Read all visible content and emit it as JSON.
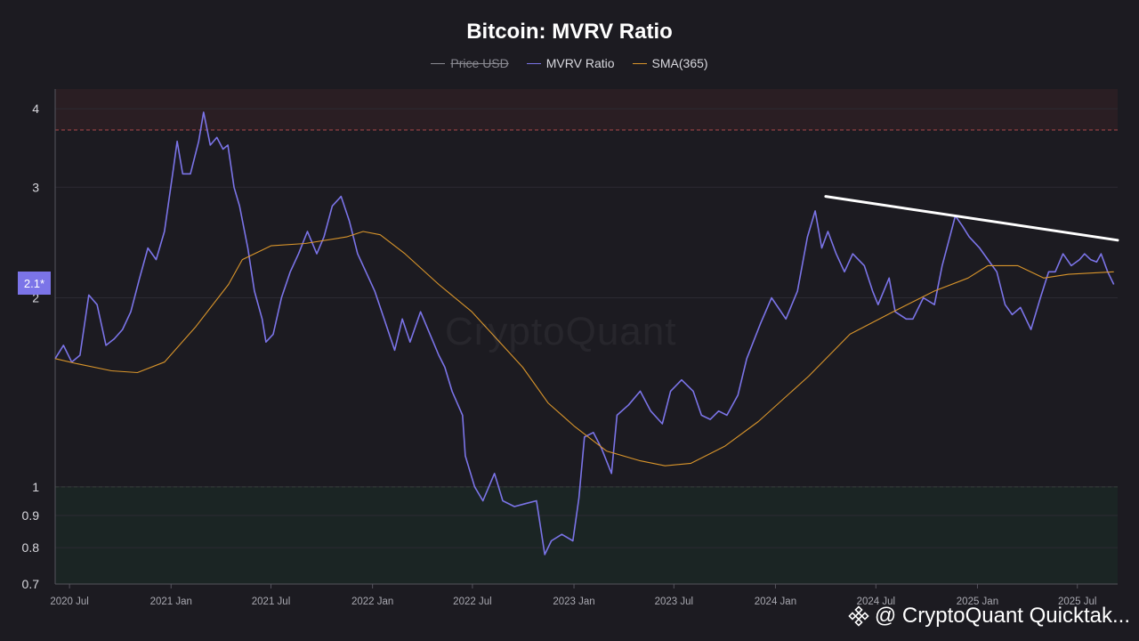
{
  "chart_data": {
    "type": "line",
    "title": "Bitcoin: MVRV Ratio",
    "xlabel": "",
    "ylabel": "",
    "y_scale": "log",
    "ylim": [
      0.7,
      4.3
    ],
    "xlim": [
      "2020-06-05",
      "2025-09-12"
    ],
    "yticks": [
      {
        "label": "4",
        "value": 4
      },
      {
        "label": "3",
        "value": 3
      },
      {
        "label": "2",
        "value": 2
      },
      {
        "label": "1",
        "value": 1
      },
      {
        "label": "0.9",
        "value": 0.9
      },
      {
        "label": "0.8",
        "value": 0.8
      },
      {
        "label": "0.7",
        "value": 0.7
      }
    ],
    "xticks": [
      {
        "label": "2020 Jul",
        "date": "2020-07-01"
      },
      {
        "label": "2021 Jan",
        "date": "2021-01-01"
      },
      {
        "label": "2021 Jul",
        "date": "2021-07-01"
      },
      {
        "label": "2022 Jan",
        "date": "2022-01-01"
      },
      {
        "label": "2022 Jul",
        "date": "2022-07-01"
      },
      {
        "label": "2023 Jan",
        "date": "2023-01-01"
      },
      {
        "label": "2023 Jul",
        "date": "2023-07-01"
      },
      {
        "label": "2024 Jan",
        "date": "2024-01-01"
      },
      {
        "label": "2024 Jul",
        "date": "2024-07-01"
      },
      {
        "label": "2025 Jan",
        "date": "2025-01-01"
      },
      {
        "label": "2025 Jul",
        "date": "2025-07-01"
      }
    ],
    "series": [
      {
        "name": "Price USD",
        "color": "#8a8a92",
        "hidden": true,
        "x": [],
        "y": []
      },
      {
        "name": "MVRV Ratio",
        "color": "#7b74e8",
        "x": [
          "2020-06-05",
          "2020-06-20",
          "2020-07-05",
          "2020-07-20",
          "2020-08-05",
          "2020-08-20",
          "2020-09-05",
          "2020-09-20",
          "2020-10-05",
          "2020-10-20",
          "2020-11-05",
          "2020-11-20",
          "2020-12-05",
          "2020-12-20",
          "2021-01-05",
          "2021-01-12",
          "2021-01-22",
          "2021-02-05",
          "2021-02-20",
          "2021-03-01",
          "2021-03-13",
          "2021-03-25",
          "2021-04-05",
          "2021-04-14",
          "2021-04-25",
          "2021-05-05",
          "2021-05-20",
          "2021-06-01",
          "2021-06-15",
          "2021-06-22",
          "2021-07-05",
          "2021-07-20",
          "2021-08-05",
          "2021-08-20",
          "2021-09-05",
          "2021-09-22",
          "2021-10-05",
          "2021-10-20",
          "2021-11-05",
          "2021-11-20",
          "2021-12-05",
          "2021-12-20",
          "2022-01-05",
          "2022-01-22",
          "2022-02-10",
          "2022-02-24",
          "2022-03-10",
          "2022-03-29",
          "2022-04-15",
          "2022-05-01",
          "2022-05-12",
          "2022-05-25",
          "2022-06-13",
          "2022-06-18",
          "2022-07-05",
          "2022-07-20",
          "2022-08-10",
          "2022-08-25",
          "2022-09-15",
          "2022-10-05",
          "2022-10-25",
          "2022-11-09",
          "2022-11-21",
          "2022-12-10",
          "2022-12-30",
          "2023-01-10",
          "2023-01-20",
          "2023-02-05",
          "2023-02-20",
          "2023-03-10",
          "2023-03-20",
          "2023-04-10",
          "2023-05-01",
          "2023-05-20",
          "2023-06-10",
          "2023-06-25",
          "2023-07-15",
          "2023-08-05",
          "2023-08-20",
          "2023-09-05",
          "2023-09-20",
          "2023-10-05",
          "2023-10-25",
          "2023-11-10",
          "2023-12-05",
          "2023-12-25",
          "2024-01-20",
          "2024-02-10",
          "2024-02-28",
          "2024-03-13",
          "2024-03-25",
          "2024-04-05",
          "2024-04-20",
          "2024-05-05",
          "2024-05-20",
          "2024-06-10",
          "2024-06-25",
          "2024-07-05",
          "2024-07-25",
          "2024-08-05",
          "2024-08-25",
          "2024-09-06",
          "2024-09-25",
          "2024-10-15",
          "2024-10-29",
          "2024-11-12",
          "2024-11-22",
          "2024-12-05",
          "2024-12-17",
          "2025-01-05",
          "2025-01-20",
          "2025-02-05",
          "2025-02-20",
          "2025-03-05",
          "2025-03-20",
          "2025-04-08",
          "2025-04-25",
          "2025-05-10",
          "2025-05-22",
          "2025-06-05",
          "2025-06-20",
          "2025-07-05",
          "2025-07-14",
          "2025-07-25",
          "2025-08-05",
          "2025-08-13",
          "2025-08-25",
          "2025-09-05"
        ],
        "y": [
          1.6,
          1.68,
          1.58,
          1.62,
          2.02,
          1.95,
          1.68,
          1.72,
          1.78,
          1.9,
          2.15,
          2.4,
          2.3,
          2.55,
          3.2,
          3.55,
          3.15,
          3.15,
          3.55,
          3.95,
          3.5,
          3.6,
          3.45,
          3.5,
          3.0,
          2.8,
          2.4,
          2.05,
          1.85,
          1.7,
          1.75,
          2.0,
          2.2,
          2.35,
          2.55,
          2.35,
          2.5,
          2.8,
          2.9,
          2.65,
          2.35,
          2.2,
          2.05,
          1.85,
          1.65,
          1.85,
          1.7,
          1.9,
          1.75,
          1.62,
          1.55,
          1.42,
          1.3,
          1.12,
          1.0,
          0.95,
          1.05,
          0.95,
          0.93,
          0.94,
          0.95,
          0.78,
          0.82,
          0.84,
          0.82,
          0.96,
          1.2,
          1.22,
          1.15,
          1.05,
          1.3,
          1.35,
          1.42,
          1.32,
          1.26,
          1.42,
          1.48,
          1.42,
          1.3,
          1.28,
          1.32,
          1.3,
          1.4,
          1.6,
          1.82,
          2.0,
          1.85,
          2.05,
          2.5,
          2.75,
          2.4,
          2.55,
          2.35,
          2.2,
          2.35,
          2.25,
          2.05,
          1.95,
          2.15,
          1.9,
          1.85,
          1.85,
          2.0,
          1.95,
          2.25,
          2.5,
          2.7,
          2.6,
          2.5,
          2.4,
          2.3,
          2.2,
          1.95,
          1.88,
          1.93,
          1.78,
          2.0,
          2.2,
          2.2,
          2.35,
          2.25,
          2.3,
          2.35,
          2.3,
          2.28,
          2.35,
          2.2,
          2.1
        ]
      },
      {
        "name": "SMA(365)",
        "color": "#d9952b",
        "x": [
          "2020-06-05",
          "2020-07-15",
          "2020-09-15",
          "2020-11-01",
          "2020-12-20",
          "2021-02-15",
          "2021-04-15",
          "2021-05-10",
          "2021-07-01",
          "2021-09-01",
          "2021-11-15",
          "2021-12-15",
          "2022-01-15",
          "2022-03-01",
          "2022-05-01",
          "2022-06-30",
          "2022-09-30",
          "2022-11-15",
          "2023-01-01",
          "2023-03-01",
          "2023-05-01",
          "2023-06-15",
          "2023-08-01",
          "2023-10-01",
          "2023-12-01",
          "2024-03-01",
          "2024-05-15",
          "2024-08-01",
          "2024-10-15",
          "2024-12-15",
          "2025-01-20",
          "2025-03-15",
          "2025-05-01",
          "2025-06-15",
          "2025-09-05"
        ],
        "y": [
          1.6,
          1.57,
          1.53,
          1.52,
          1.58,
          1.8,
          2.1,
          2.3,
          2.42,
          2.44,
          2.5,
          2.55,
          2.52,
          2.35,
          2.1,
          1.9,
          1.55,
          1.36,
          1.25,
          1.14,
          1.1,
          1.08,
          1.09,
          1.16,
          1.27,
          1.5,
          1.75,
          1.9,
          2.05,
          2.15,
          2.25,
          2.25,
          2.15,
          2.18,
          2.2
        ]
      }
    ],
    "trendline": {
      "color": "#ffffff",
      "x": [
        "2024-04-01",
        "2025-09-12"
      ],
      "y": [
        2.9,
        2.47
      ]
    },
    "bands": [
      {
        "from": 3.7,
        "to": 4.3,
        "color": "#2a1e23"
      },
      {
        "from": 0.7,
        "to": 1.0,
        "color": "#1b2524"
      }
    ],
    "grid": true,
    "legend_position": "top-center",
    "current_value_badge": "2.1*"
  },
  "legend": [
    {
      "label": "Price USD",
      "color": "#8a8a92",
      "hidden": true
    },
    {
      "label": "MVRV Ratio",
      "color": "#7b74e8",
      "hidden": false
    },
    {
      "label": "SMA(365)",
      "color": "#d9952b",
      "hidden": false
    }
  ],
  "watermark": "CryptoQuant",
  "credit": "@ CryptoQuant Quicktak..."
}
